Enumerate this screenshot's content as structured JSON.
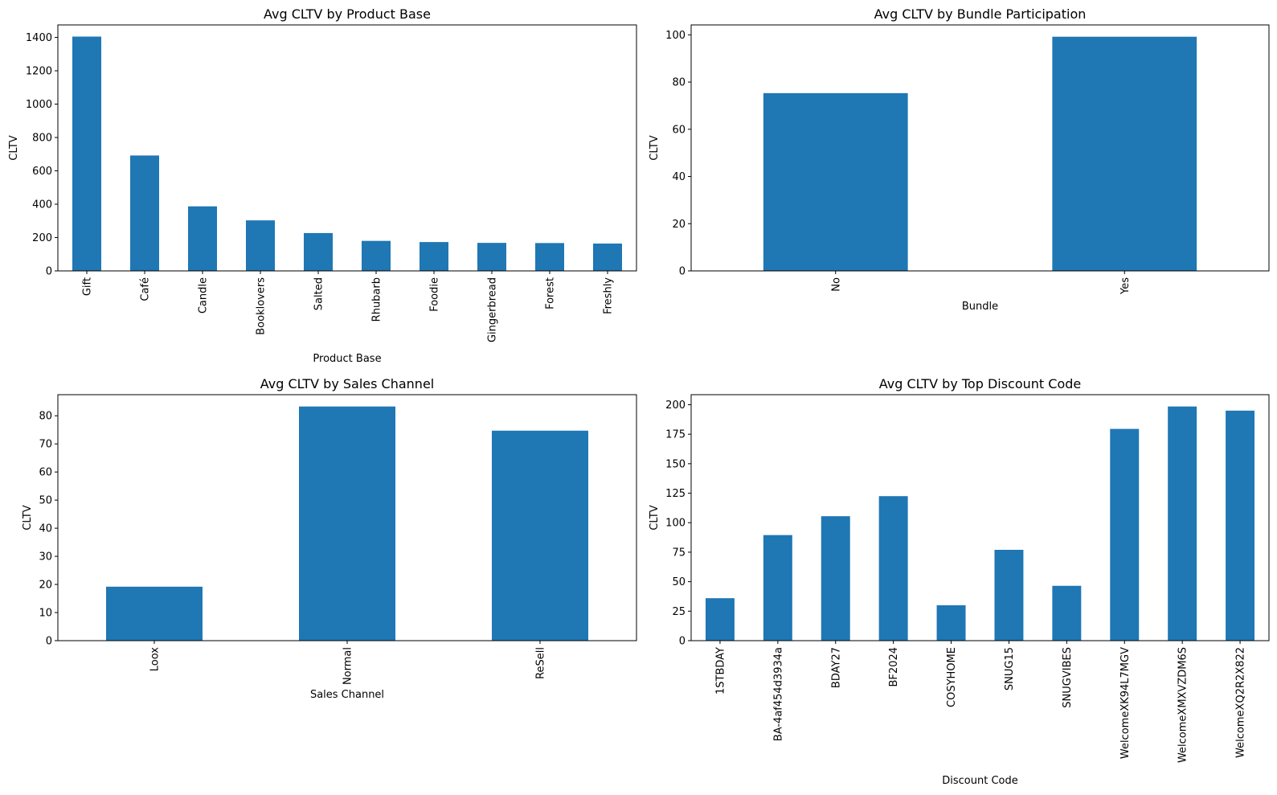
{
  "chart_data": [
    {
      "type": "bar",
      "title": "Avg CLTV by Product Base",
      "xlabel": "Product Base",
      "ylabel": "CLTV",
      "categories": [
        "Gift",
        "Café",
        "Candle",
        "Booklovers",
        "Salted",
        "Rhubarb",
        "Foodie",
        "Gingerbread",
        "Forest",
        "Freshly"
      ],
      "values": [
        1405,
        692,
        387,
        303,
        227,
        180,
        173,
        168,
        167,
        164
      ],
      "ylim": [
        0,
        1475
      ],
      "yticks": [
        0,
        200,
        400,
        600,
        800,
        1000,
        1200,
        1400
      ],
      "color": "#1f77b4",
      "grid": false
    },
    {
      "type": "bar",
      "title": "Avg CLTV by Bundle Participation",
      "xlabel": "Bundle",
      "ylabel": "CLTV",
      "categories": [
        "No",
        "Yes"
      ],
      "values": [
        75.3,
        99.2
      ],
      "ylim": [
        0,
        104.2
      ],
      "yticks": [
        0,
        20,
        40,
        60,
        80,
        100
      ],
      "color": "#1f77b4",
      "grid": false
    },
    {
      "type": "bar",
      "title": "Avg CLTV by Sales Channel",
      "xlabel": "Sales Channel",
      "ylabel": "CLTV",
      "categories": [
        "Loox",
        "Normal",
        "ReSell"
      ],
      "values": [
        19.2,
        83.3,
        74.7
      ],
      "ylim": [
        0,
        87.5
      ],
      "yticks": [
        0,
        10,
        20,
        30,
        40,
        50,
        60,
        70,
        80
      ],
      "color": "#1f77b4",
      "grid": false
    },
    {
      "type": "bar",
      "title": "Avg CLTV by Top Discount Code",
      "xlabel": "Discount Code",
      "ylabel": "CLTV",
      "categories": [
        "1STBDAY",
        "BA-4af454d3934a",
        "BDAY27",
        "BF2024",
        "COSYHOME",
        "SNUG15",
        "SNUGVIBES",
        "WelcomeXK94L7MGV",
        "WelcomeXMXVZDM6S",
        "WelcomeXQ2R2X822"
      ],
      "values": [
        36,
        89.5,
        105.5,
        122.5,
        30,
        77,
        46.5,
        179.5,
        198.5,
        195
      ],
      "ylim": [
        0,
        208.5
      ],
      "yticks": [
        0,
        25,
        50,
        75,
        100,
        125,
        150,
        175,
        200
      ],
      "color": "#1f77b4",
      "grid": false
    }
  ]
}
